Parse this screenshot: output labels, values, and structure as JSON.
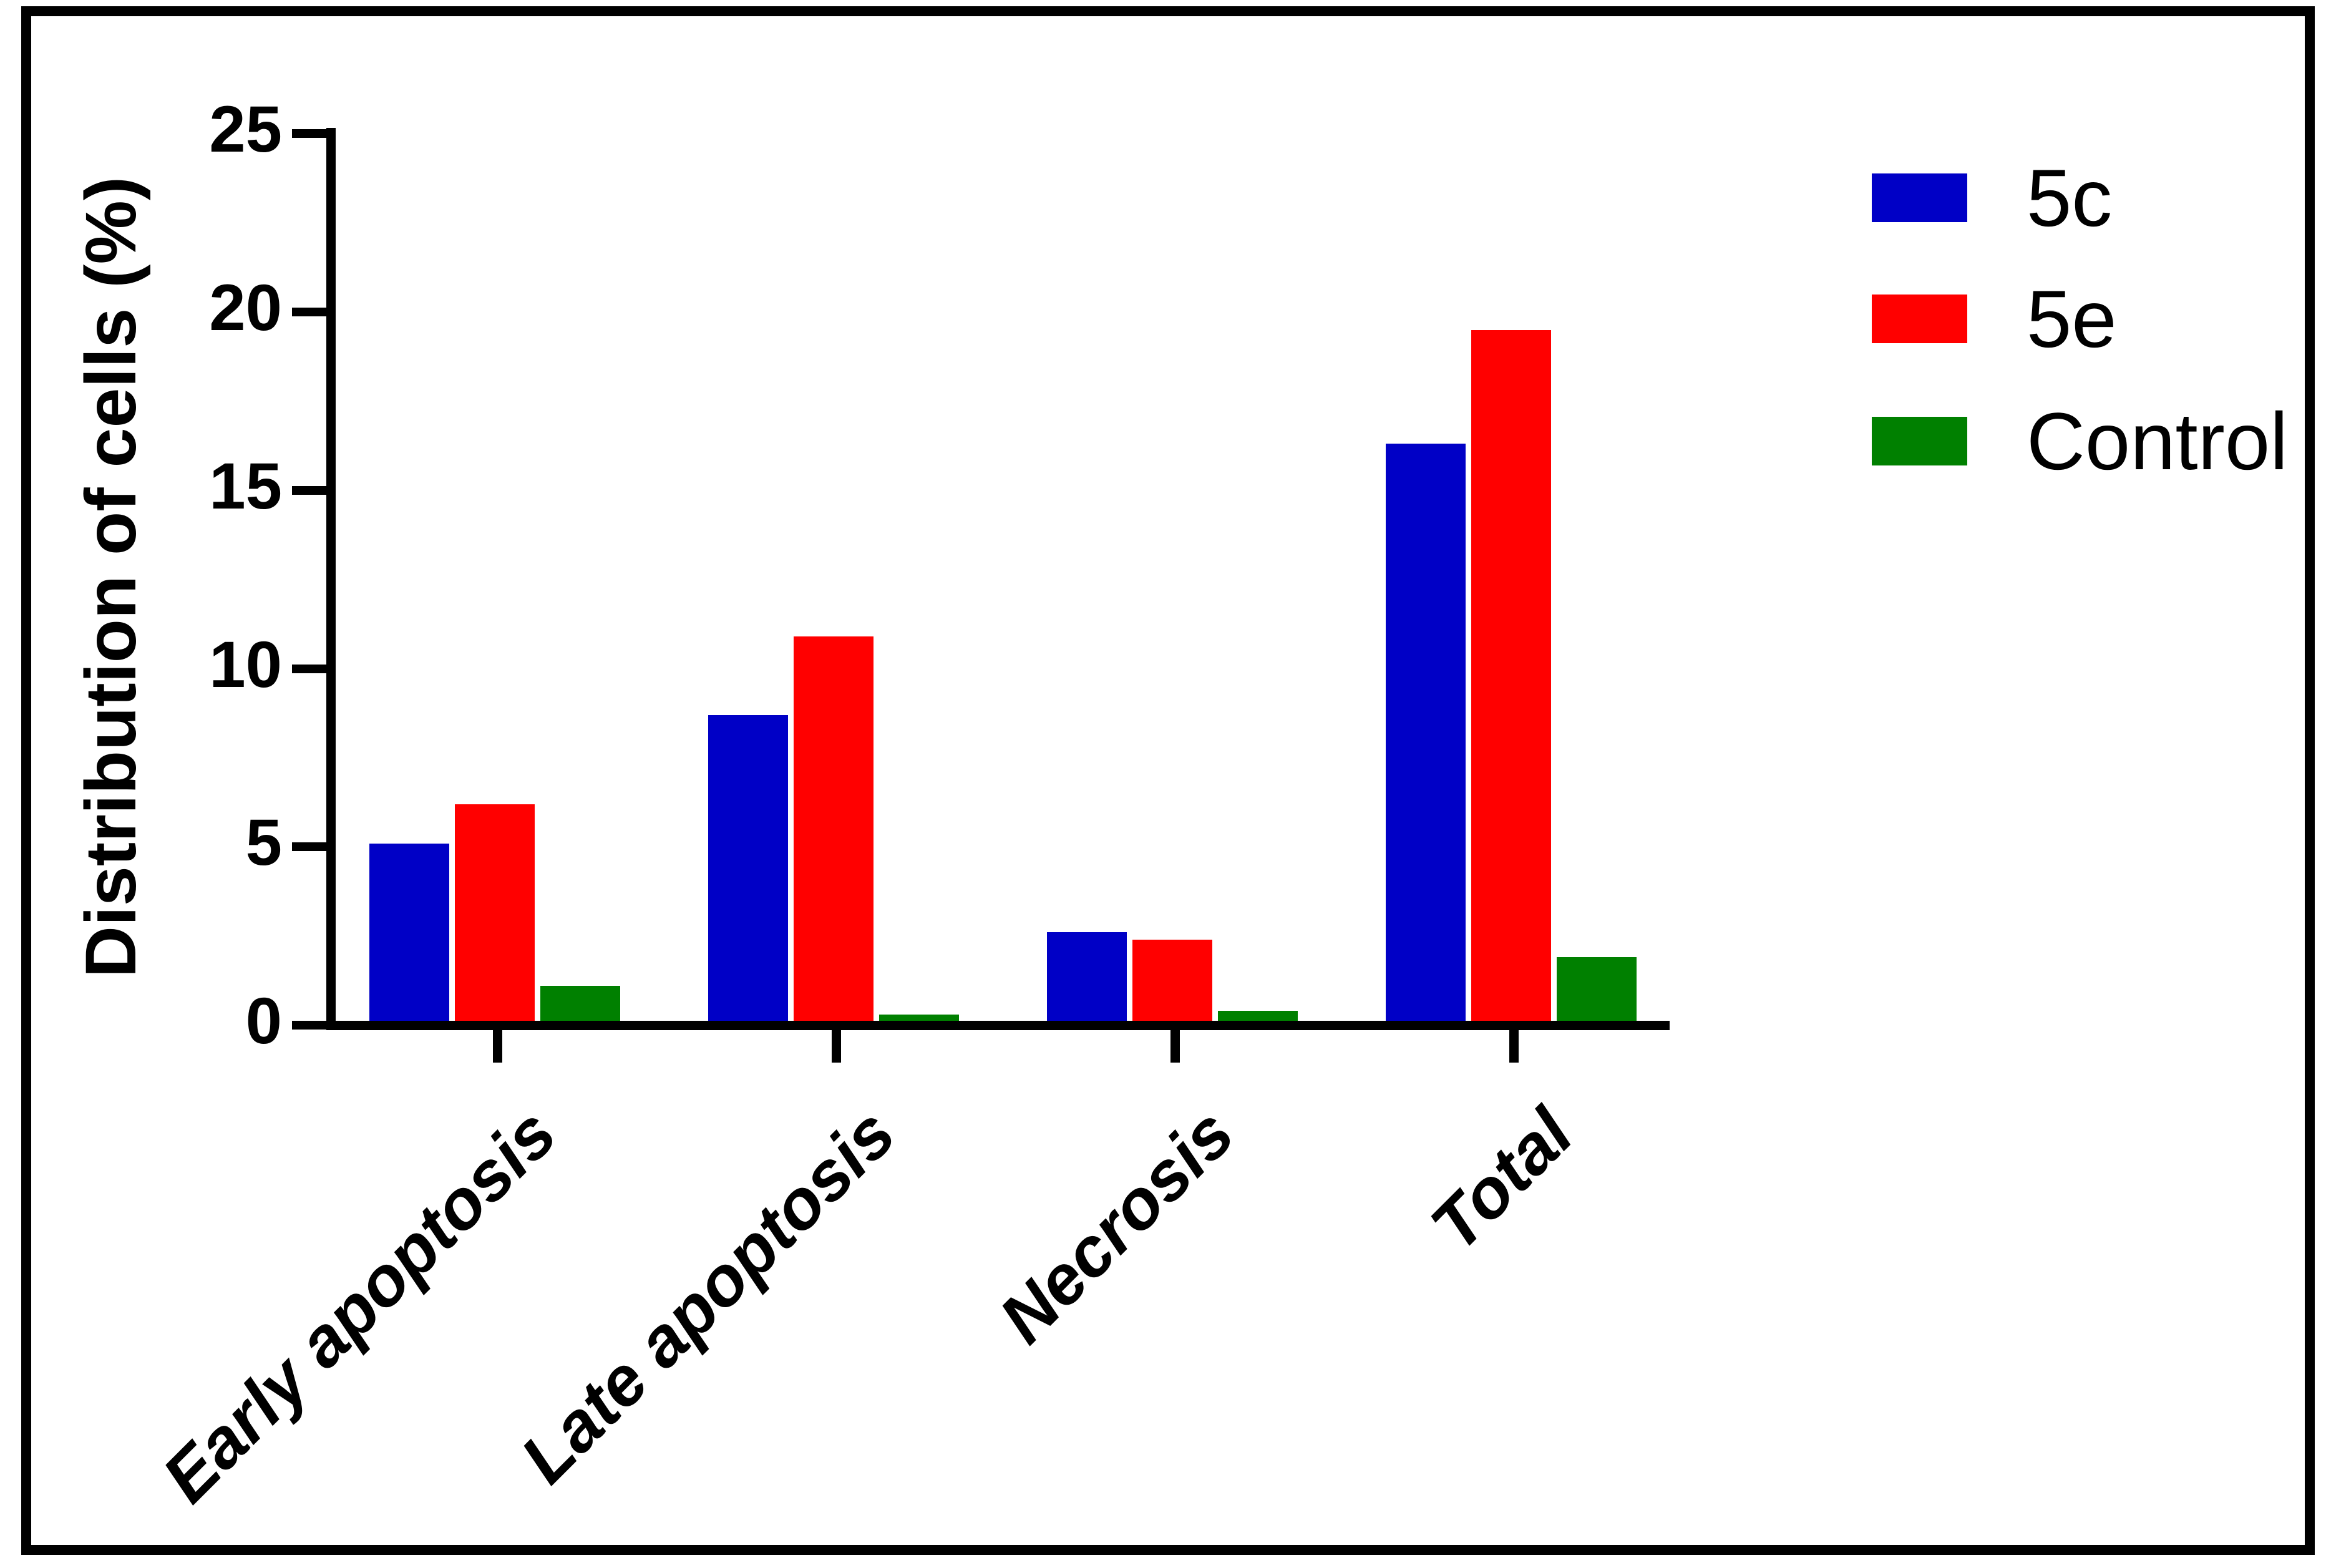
{
  "chart_data": {
    "type": "bar",
    "title": "",
    "categories": [
      "Early apoptosis",
      "Late apoptosis",
      "Necrosis",
      "Total"
    ],
    "series": [
      {
        "name": "5c",
        "color": "#0000C6",
        "values": [
          5.1,
          8.7,
          2.6,
          16.3
        ]
      },
      {
        "name": "5e",
        "color": "#FF0000",
        "values": [
          6.2,
          10.9,
          2.4,
          19.5
        ]
      },
      {
        "name": "Control",
        "color": "#008000",
        "values": [
          1.1,
          0.3,
          0.4,
          1.9
        ]
      }
    ],
    "xlabel": "",
    "ylabel": "Distribution of cells (%)",
    "ylim": [
      0,
      25
    ],
    "yticks": [
      0,
      5,
      10,
      15,
      20,
      25
    ],
    "grid": false,
    "legend_position": "top-right",
    "axis_color": "#000000",
    "background_color": "#ffffff",
    "border_color": "#000000"
  }
}
